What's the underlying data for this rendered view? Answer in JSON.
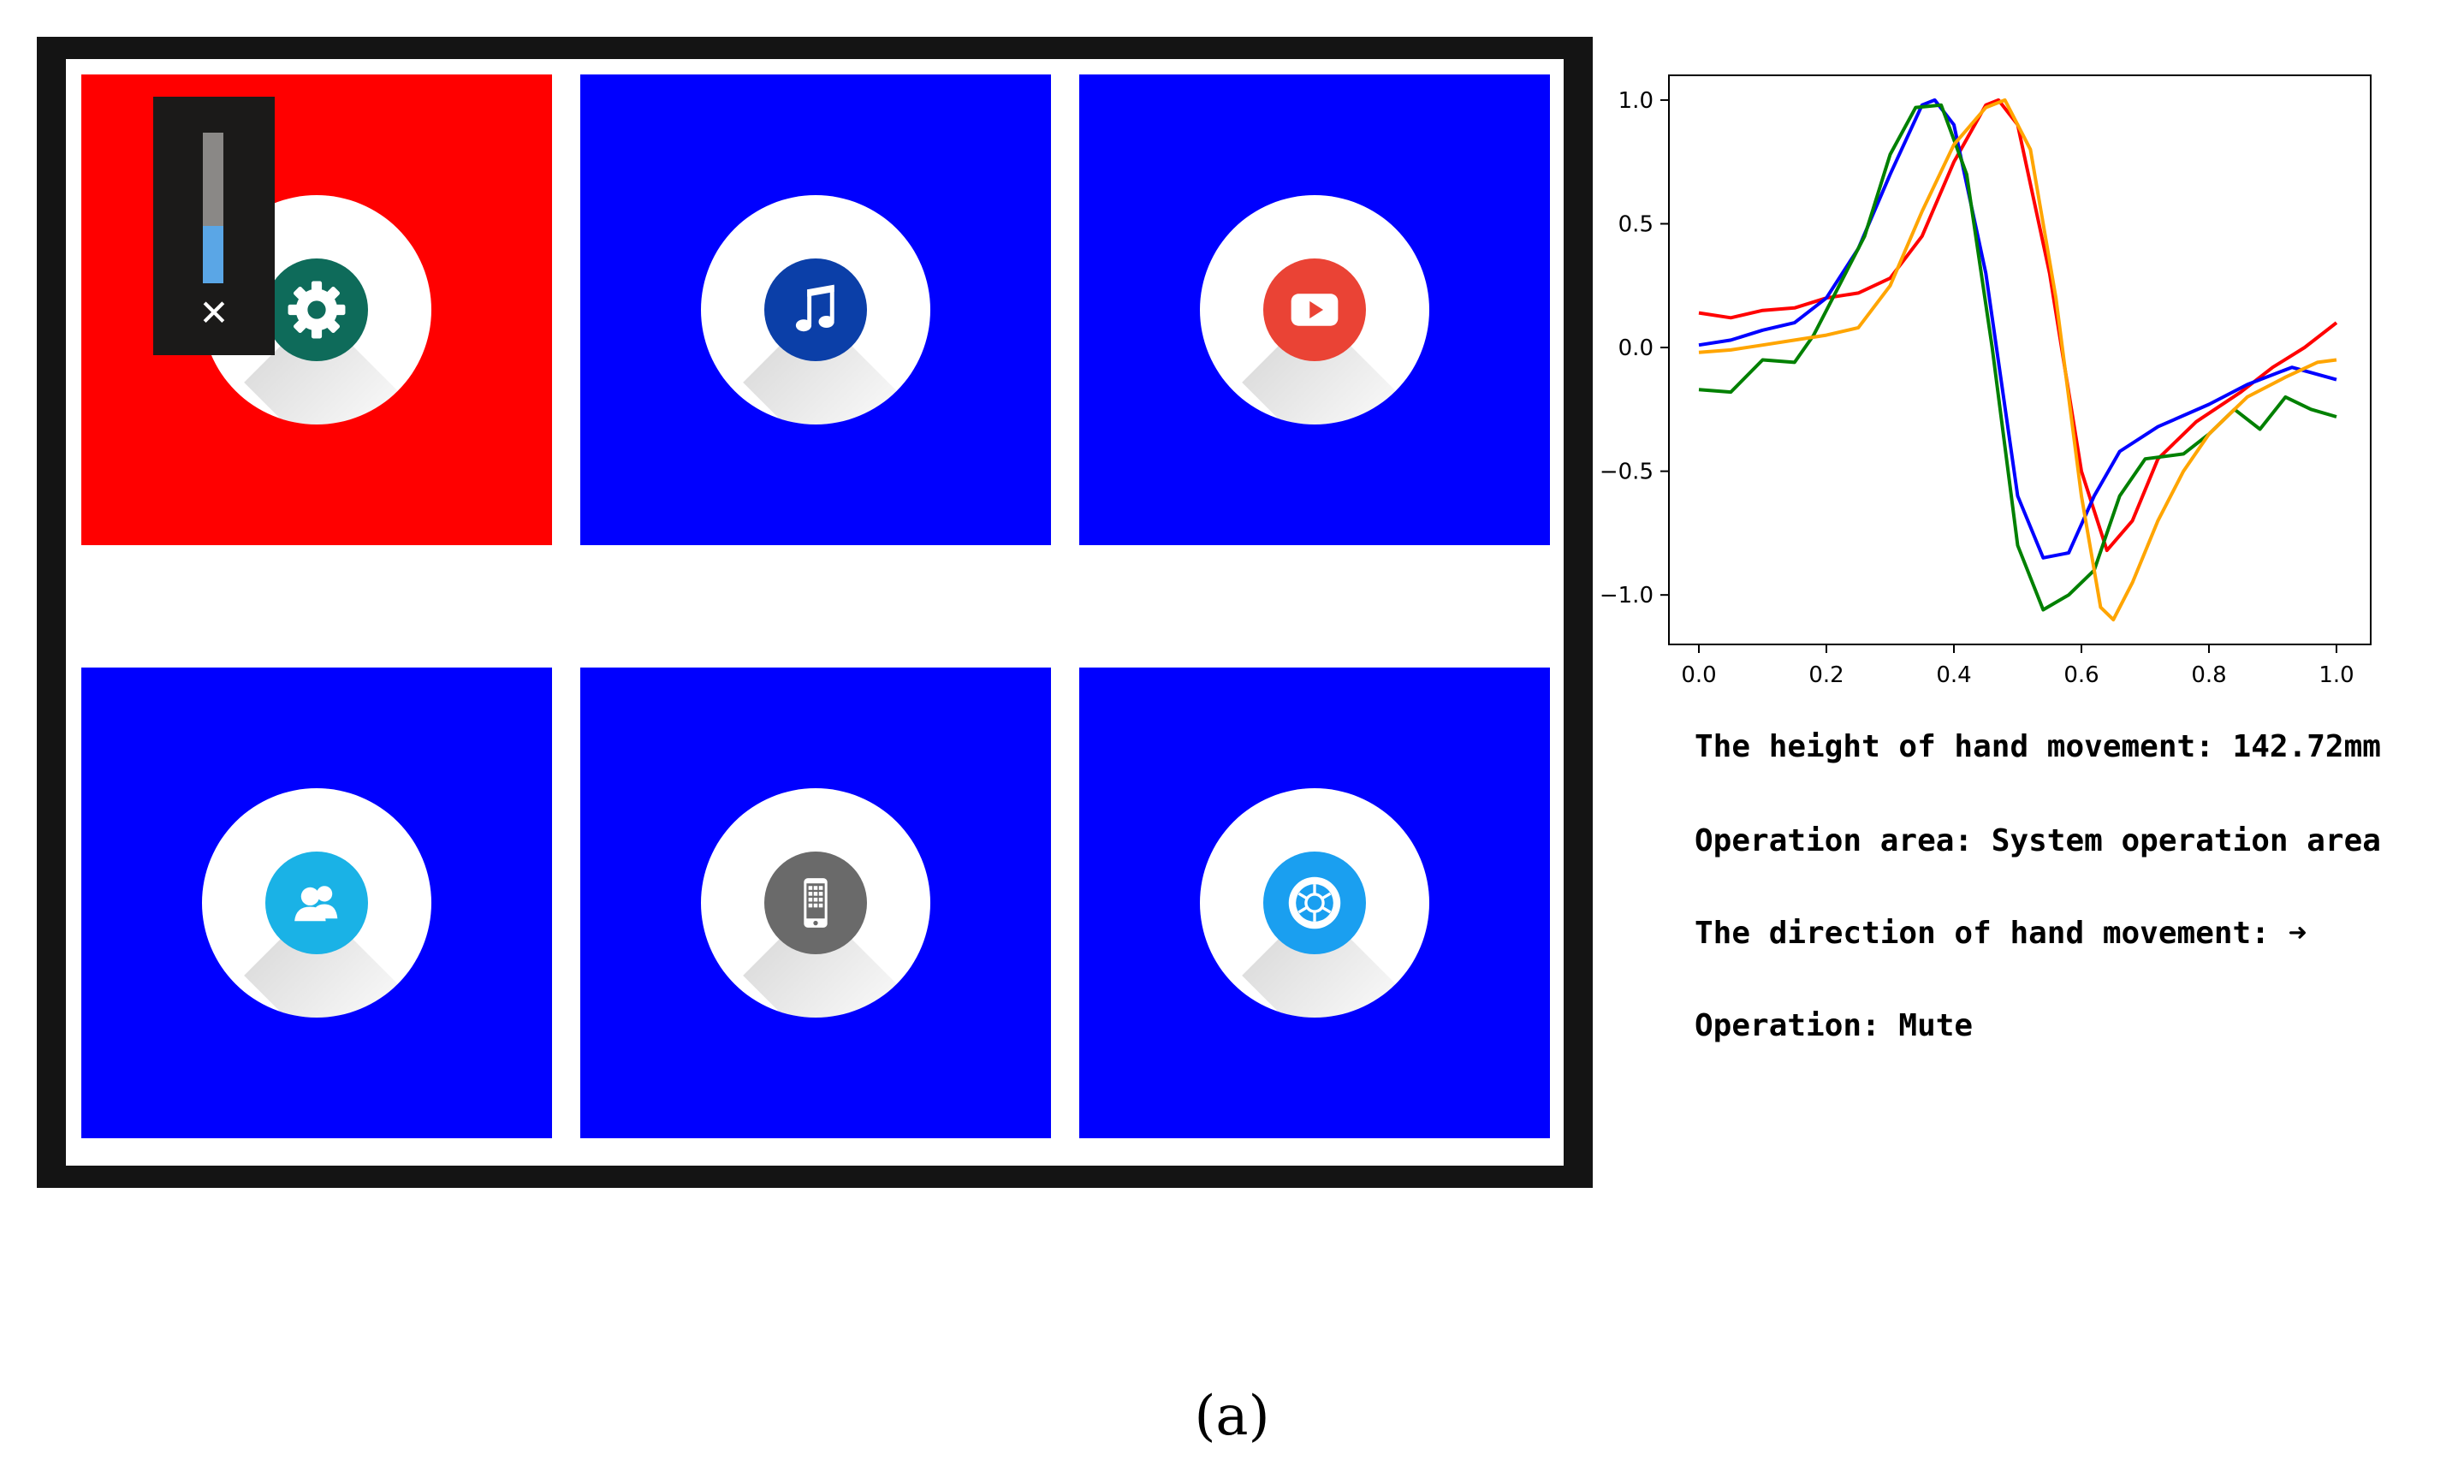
{
  "tiles": [
    {
      "icon": "gear-icon",
      "active": true,
      "badge_color": "#0e6b5a"
    },
    {
      "icon": "music-note-icon",
      "active": false,
      "badge_color": "#0b3fa8"
    },
    {
      "icon": "youtube-play-icon",
      "active": false,
      "badge_color": "#ea4335"
    },
    {
      "icon": "contacts-icon",
      "active": false,
      "badge_color": "#1ab2e6"
    },
    {
      "icon": "smartphone-icon",
      "active": false,
      "badge_color": "#6a6a6a"
    },
    {
      "icon": "camera-aperture-icon",
      "active": false,
      "badge_color": "#1a9ff0"
    }
  ],
  "colors": {
    "active_tile": "#ff0000",
    "inactive_tile": "#0000ff"
  },
  "volume_overlay": {
    "level": 0.38,
    "close_glyph": "✕"
  },
  "chart_data": {
    "type": "line",
    "xlim": [
      0.0,
      1.0
    ],
    "ylim": [
      -1.2,
      1.1
    ],
    "xticks": [
      "0.0",
      "0.2",
      "0.4",
      "0.6",
      "0.8",
      "1.0"
    ],
    "yticks": [
      "1.0",
      "0.5",
      "0.0",
      "−0.5",
      "−1.0"
    ],
    "series": [
      {
        "color": "#ff0000",
        "points": [
          [
            0.0,
            0.14
          ],
          [
            0.05,
            0.12
          ],
          [
            0.1,
            0.15
          ],
          [
            0.15,
            0.16
          ],
          [
            0.2,
            0.2
          ],
          [
            0.25,
            0.22
          ],
          [
            0.3,
            0.28
          ],
          [
            0.35,
            0.45
          ],
          [
            0.4,
            0.75
          ],
          [
            0.45,
            0.98
          ],
          [
            0.47,
            1.0
          ],
          [
            0.5,
            0.9
          ],
          [
            0.55,
            0.3
          ],
          [
            0.6,
            -0.5
          ],
          [
            0.64,
            -0.82
          ],
          [
            0.68,
            -0.7
          ],
          [
            0.72,
            -0.45
          ],
          [
            0.78,
            -0.3
          ],
          [
            0.85,
            -0.18
          ],
          [
            0.9,
            -0.08
          ],
          [
            0.95,
            0.0
          ],
          [
            1.0,
            0.1
          ]
        ]
      },
      {
        "color": "#0000ff",
        "points": [
          [
            0.0,
            0.01
          ],
          [
            0.05,
            0.03
          ],
          [
            0.1,
            0.07
          ],
          [
            0.15,
            0.1
          ],
          [
            0.2,
            0.2
          ],
          [
            0.25,
            0.4
          ],
          [
            0.3,
            0.7
          ],
          [
            0.35,
            0.98
          ],
          [
            0.37,
            1.0
          ],
          [
            0.4,
            0.9
          ],
          [
            0.45,
            0.3
          ],
          [
            0.5,
            -0.6
          ],
          [
            0.54,
            -0.85
          ],
          [
            0.58,
            -0.83
          ],
          [
            0.62,
            -0.6
          ],
          [
            0.66,
            -0.42
          ],
          [
            0.72,
            -0.32
          ],
          [
            0.8,
            -0.23
          ],
          [
            0.86,
            -0.15
          ],
          [
            0.93,
            -0.08
          ],
          [
            1.0,
            -0.13
          ]
        ]
      },
      {
        "color": "#008000",
        "points": [
          [
            0.0,
            -0.17
          ],
          [
            0.05,
            -0.18
          ],
          [
            0.1,
            -0.05
          ],
          [
            0.15,
            -0.06
          ],
          [
            0.18,
            0.05
          ],
          [
            0.22,
            0.25
          ],
          [
            0.26,
            0.45
          ],
          [
            0.3,
            0.78
          ],
          [
            0.34,
            0.97
          ],
          [
            0.38,
            0.98
          ],
          [
            0.42,
            0.7
          ],
          [
            0.46,
            0.0
          ],
          [
            0.5,
            -0.8
          ],
          [
            0.54,
            -1.06
          ],
          [
            0.58,
            -1.0
          ],
          [
            0.62,
            -0.9
          ],
          [
            0.66,
            -0.6
          ],
          [
            0.7,
            -0.45
          ],
          [
            0.76,
            -0.43
          ],
          [
            0.8,
            -0.35
          ],
          [
            0.84,
            -0.25
          ],
          [
            0.88,
            -0.33
          ],
          [
            0.92,
            -0.2
          ],
          [
            0.96,
            -0.25
          ],
          [
            1.0,
            -0.28
          ]
        ]
      },
      {
        "color": "#ffa500",
        "points": [
          [
            0.0,
            -0.02
          ],
          [
            0.05,
            -0.01
          ],
          [
            0.1,
            0.01
          ],
          [
            0.15,
            0.03
          ],
          [
            0.2,
            0.05
          ],
          [
            0.25,
            0.08
          ],
          [
            0.3,
            0.25
          ],
          [
            0.35,
            0.55
          ],
          [
            0.4,
            0.82
          ],
          [
            0.45,
            0.97
          ],
          [
            0.48,
            1.0
          ],
          [
            0.52,
            0.8
          ],
          [
            0.56,
            0.2
          ],
          [
            0.6,
            -0.6
          ],
          [
            0.63,
            -1.05
          ],
          [
            0.65,
            -1.1
          ],
          [
            0.68,
            -0.95
          ],
          [
            0.72,
            -0.7
          ],
          [
            0.76,
            -0.5
          ],
          [
            0.8,
            -0.35
          ],
          [
            0.86,
            -0.2
          ],
          [
            0.92,
            -0.12
          ],
          [
            0.97,
            -0.06
          ],
          [
            1.0,
            -0.05
          ]
        ]
      }
    ]
  },
  "status": {
    "height_line": "The height of hand movement: 142.72mm",
    "area_line": "Operation area: System operation area",
    "direction_line": "The direction of hand movement: ➜",
    "operation_line": "Operation: Mute"
  },
  "caption": "(a)"
}
